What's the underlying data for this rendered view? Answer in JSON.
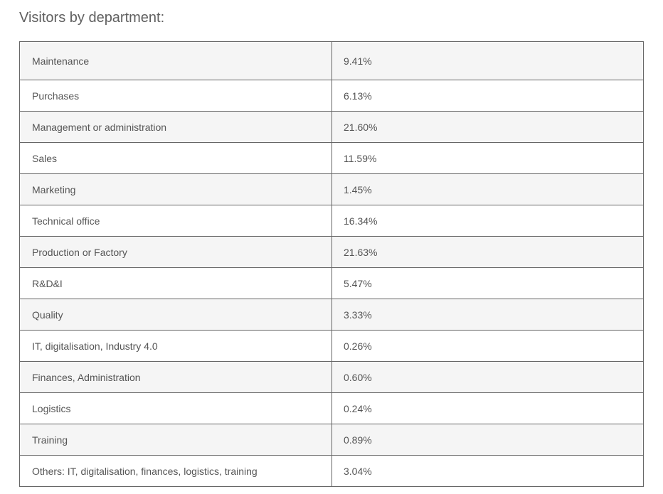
{
  "heading": "Visitors by department:",
  "table": {
    "rows": [
      {
        "department": "Maintenance",
        "percentage": "9.41%"
      },
      {
        "department": "Purchases",
        "percentage": "6.13%"
      },
      {
        "department": "Management or administration",
        "percentage": "21.60%"
      },
      {
        "department": "Sales",
        "percentage": "11.59%"
      },
      {
        "department": "Marketing",
        "percentage": "1.45%"
      },
      {
        "department": "Technical office",
        "percentage": "16.34%"
      },
      {
        "department": "Production or Factory",
        "percentage": "21.63%"
      },
      {
        "department": "R&D&I",
        "percentage": "5.47%"
      },
      {
        "department": "Quality",
        "percentage": "3.33%"
      },
      {
        "department": "IT, digitalisation, Industry 4.0",
        "percentage": "0.26%"
      },
      {
        "department": "Finances, Administration",
        "percentage": "0.60%"
      },
      {
        "department": "Logistics",
        "percentage": "0.24%"
      },
      {
        "department": "Training",
        "percentage": "0.89%"
      },
      {
        "department": "Others: IT, digitalisation, finances, logistics, training",
        "percentage": "3.04%"
      }
    ]
  },
  "colors": {
    "text": "#555555",
    "border": "#666666",
    "row_alt": "#f5f5f5",
    "row": "#ffffff"
  }
}
